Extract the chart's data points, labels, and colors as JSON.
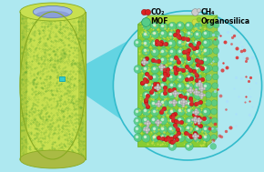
{
  "bg_color": "#aee8f0",
  "cylinder_outer_color": "#c8e050",
  "cylinder_top_ring_color": "#c8e050",
  "cylinder_inner_color": "#a0b8e8",
  "cylinder_inner_dark": "#7888c8",
  "cylinder_edge_color": "#88aa22",
  "cylinder_dot_color": "#66aa33",
  "membrane_face_color": "#88cc33",
  "membrane_top_color": "#aadd44",
  "membrane_right_color": "#99cc44",
  "mof_ball_color": "#55cc88",
  "mof_ball_edge": "#229966",
  "organosilica_color": "#ccdd44",
  "organosilica_edge": "#aaaa22",
  "co2_red": "#dd2222",
  "co2_dark": "#991111",
  "co2_center": "#ffaaaa",
  "ch4_gray": "#cccccc",
  "ch4_dark": "#888888",
  "ch4_center": "#eeeeee",
  "zoom_arrow_color": "#44ccdd",
  "zoom_box_color": "#33cccc",
  "escape_co2_color": "#dd3333",
  "escape_ch4_color": "#aaaaaa",
  "escape_light_color": "#aaddff",
  "legend_co2": "CO₂",
  "legend_ch4": "CH₄",
  "legend_mof": "MOF",
  "legend_organosilica": "Organosilica"
}
